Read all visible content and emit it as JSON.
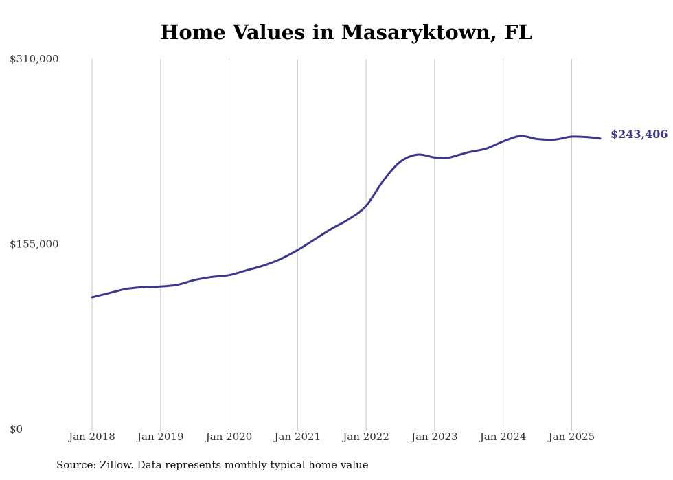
{
  "chart_data": {
    "type": "line",
    "title": "Home Values in Masaryktown, FL",
    "source": "Source: Zillow. Data represents monthly typical home value",
    "xlabel": "",
    "ylabel": "",
    "ylim": [
      0,
      310000
    ],
    "yticks": [
      {
        "value": 0,
        "label": "$0"
      },
      {
        "value": 155000,
        "label": "$155,000"
      },
      {
        "value": 310000,
        "label": "$310,000"
      }
    ],
    "xticks": [
      {
        "date": "2018-01",
        "label": "Jan 2018"
      },
      {
        "date": "2019-01",
        "label": "Jan 2019"
      },
      {
        "date": "2020-01",
        "label": "Jan 2020"
      },
      {
        "date": "2021-01",
        "label": "Jan 2021"
      },
      {
        "date": "2022-01",
        "label": "Jan 2022"
      },
      {
        "date": "2023-01",
        "label": "Jan 2023"
      },
      {
        "date": "2024-01",
        "label": "Jan 2024"
      },
      {
        "date": "2025-01",
        "label": "Jan 2025"
      }
    ],
    "xlim": [
      "2018-01",
      "2025-06"
    ],
    "grid": "vertical",
    "line_color": "#3b3596",
    "end_label": "$243,406",
    "series": [
      {
        "points": [
          {
            "x": "2018-01",
            "y": 110500
          },
          {
            "x": "2018-04",
            "y": 114000
          },
          {
            "x": "2018-07",
            "y": 117500
          },
          {
            "x": "2018-10",
            "y": 119000
          },
          {
            "x": "2019-01",
            "y": 119500
          },
          {
            "x": "2019-04",
            "y": 121000
          },
          {
            "x": "2019-07",
            "y": 125000
          },
          {
            "x": "2019-10",
            "y": 127500
          },
          {
            "x": "2020-01",
            "y": 129000
          },
          {
            "x": "2020-04",
            "y": 133000
          },
          {
            "x": "2020-07",
            "y": 137000
          },
          {
            "x": "2020-10",
            "y": 142500
          },
          {
            "x": "2021-01",
            "y": 150000
          },
          {
            "x": "2021-04",
            "y": 159000
          },
          {
            "x": "2021-07",
            "y": 168000
          },
          {
            "x": "2021-10",
            "y": 176000
          },
          {
            "x": "2022-01",
            "y": 187000
          },
          {
            "x": "2022-04",
            "y": 208000
          },
          {
            "x": "2022-07",
            "y": 224000
          },
          {
            "x": "2022-10",
            "y": 230000
          },
          {
            "x": "2023-01",
            "y": 227500
          },
          {
            "x": "2023-03",
            "y": 227000
          },
          {
            "x": "2023-04",
            "y": 228000
          },
          {
            "x": "2023-07",
            "y": 232000
          },
          {
            "x": "2023-10",
            "y": 235000
          },
          {
            "x": "2024-01",
            "y": 241000
          },
          {
            "x": "2024-04",
            "y": 245500
          },
          {
            "x": "2024-07",
            "y": 243000
          },
          {
            "x": "2024-10",
            "y": 242500
          },
          {
            "x": "2025-01",
            "y": 245000
          },
          {
            "x": "2025-04",
            "y": 244500
          },
          {
            "x": "2025-06",
            "y": 243406
          }
        ]
      }
    ]
  }
}
